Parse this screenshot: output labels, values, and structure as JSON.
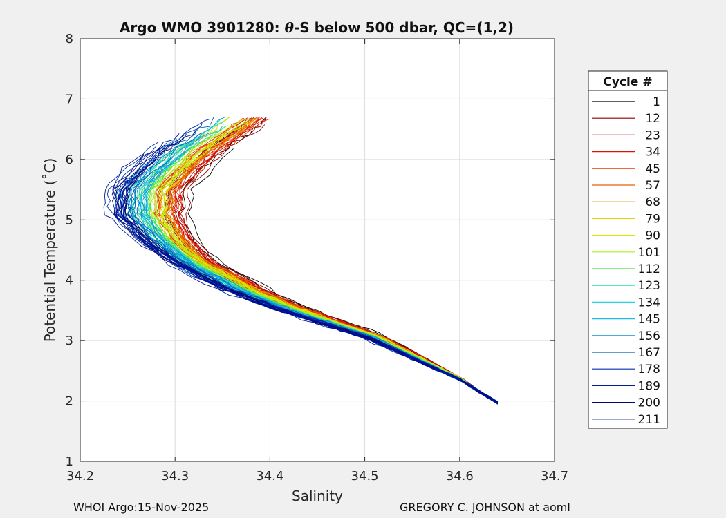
{
  "chart_data": {
    "type": "line",
    "title": "Argo WMO 3901280: θ-S below 500 dbar,  QC=(1,2)",
    "title_parts": [
      "Argo WMO 3901280: ",
      "θ",
      "-S below 500 dbar,  QC=(1,2)"
    ],
    "xlabel": "Salinity",
    "ylabel": "Potential Temperature (˚C)",
    "xlim": [
      34.2,
      34.7
    ],
    "ylim": [
      1,
      8
    ],
    "xticks": [
      34.2,
      34.3,
      34.4,
      34.5,
      34.6,
      34.7
    ],
    "yticks": [
      1,
      2,
      3,
      4,
      5,
      6,
      7,
      8
    ],
    "xtick_labels": [
      "34.2",
      "34.3",
      "34.4",
      "34.5",
      "34.6",
      "34.7"
    ],
    "ytick_labels": [
      "1",
      "2",
      "3",
      "4",
      "5",
      "6",
      "7",
      "8"
    ],
    "grid": true,
    "legend": {
      "title": "Cycle #",
      "placement": "outside-right",
      "entries": [
        "1",
        "12",
        "23",
        "34",
        "45",
        "57",
        "68",
        "79",
        "90",
        "101",
        "112",
        "123",
        "134",
        "145",
        "156",
        "167",
        "178",
        "189",
        "200",
        "211"
      ],
      "colors": [
        "#000000",
        "#8b0000",
        "#c00000",
        "#e01000",
        "#ee3300",
        "#e86000",
        "#e09000",
        "#e8d000",
        "#d8e800",
        "#a8f020",
        "#40e840",
        "#20e8a0",
        "#20d8e0",
        "#20b8e8",
        "#1090d8",
        "#0860c0",
        "#0030b0",
        "#001a90",
        "#000a70",
        "#0010a0"
      ]
    },
    "series_template": {
      "deep_point": [
        34.64,
        1.97
      ],
      "path": [
        [
          34.64,
          1.97
        ],
        [
          34.6,
          2.35
        ],
        [
          34.55,
          2.7
        ],
        [
          34.5,
          3.05
        ],
        [
          34.45,
          3.3
        ],
        [
          34.4,
          3.55
        ],
        [
          34.35,
          3.85
        ],
        [
          34.3,
          4.25
        ],
        [
          34.26,
          4.7
        ],
        [
          34.235,
          5.1
        ],
        [
          34.235,
          5.5
        ],
        [
          34.255,
          5.85
        ],
        [
          34.28,
          6.2
        ],
        [
          34.31,
          6.5
        ],
        [
          34.33,
          6.75
        ]
      ]
    },
    "footer_left": "WHOI Argo:15-Nov-2025",
    "footer_right": "GREGORY C. JOHNSON at aoml"
  }
}
